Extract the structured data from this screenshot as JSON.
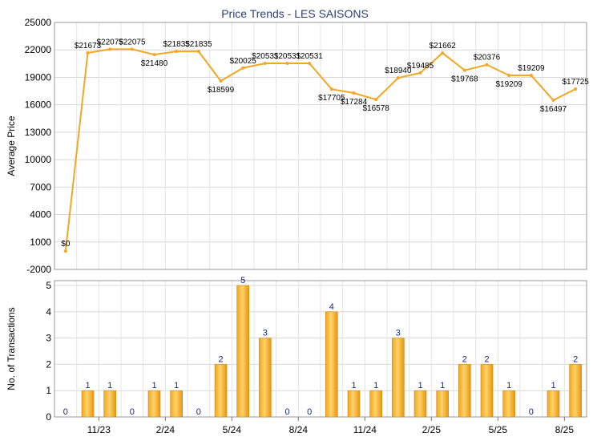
{
  "chart_data": [
    {
      "type": "line",
      "title": "Price Trends - LES SAISONS",
      "ylabel": "Average Price",
      "ylim": [
        -2000,
        25000
      ],
      "yticks": [
        "25000",
        "22000",
        "19000",
        "16000",
        "13000",
        "10000",
        "7000",
        "4000",
        "1000",
        "-2000"
      ],
      "color": "#f5a623",
      "grid": true,
      "points": [
        {
          "x": 0,
          "y": 0,
          "label": "$0"
        },
        {
          "x": 1,
          "y": 21673,
          "label": "$21673"
        },
        {
          "x": 2,
          "y": 22075,
          "label": "$22075"
        },
        {
          "x": 3,
          "y": 22075,
          "label": "$22075"
        },
        {
          "x": 4,
          "y": 21480,
          "label": "$21480"
        },
        {
          "x": 5,
          "y": 21835,
          "label": "$21835"
        },
        {
          "x": 6,
          "y": 21835,
          "label": "$21835"
        },
        {
          "x": 7,
          "y": 18599,
          "label": "$18599"
        },
        {
          "x": 8,
          "y": 20025,
          "label": "$20025"
        },
        {
          "x": 9,
          "y": 20531,
          "label": "$20531"
        },
        {
          "x": 10,
          "y": 20531,
          "label": "$20531"
        },
        {
          "x": 11,
          "y": 20531,
          "label": "$20531"
        },
        {
          "x": 12,
          "y": 17705,
          "label": "$17705"
        },
        {
          "x": 13,
          "y": 17284,
          "label": "$17284"
        },
        {
          "x": 14,
          "y": 16578,
          "label": "$16578"
        },
        {
          "x": 15,
          "y": 18940,
          "label": "$18940"
        },
        {
          "x": 16,
          "y": 19485,
          "label": "$19485"
        },
        {
          "x": 17,
          "y": 21662,
          "label": "$21662"
        },
        {
          "x": 18,
          "y": 19768,
          "label": "$19768"
        },
        {
          "x": 19,
          "y": 20376,
          "label": "$20376"
        },
        {
          "x": 20,
          "y": 19209,
          "label": "$19209"
        },
        {
          "x": 21,
          "y": 19209,
          "label": "$19209"
        },
        {
          "x": 22,
          "y": 16497,
          "label": "$16497"
        },
        {
          "x": 23,
          "y": 17725,
          "label": "$17725"
        }
      ]
    },
    {
      "type": "bar",
      "ylabel": "No. of Transactions",
      "ylim": [
        0,
        5
      ],
      "yticks": [
        "5",
        "4",
        "3",
        "2",
        "1",
        "0"
      ],
      "color": "#f5a623",
      "grid": true,
      "values": [
        0,
        1,
        1,
        0,
        1,
        1,
        0,
        2,
        5,
        3,
        0,
        0,
        4,
        1,
        1,
        3,
        1,
        1,
        2,
        2,
        1,
        0,
        1,
        2
      ],
      "xticks": [
        {
          "x": 1.5,
          "label": "11/23"
        },
        {
          "x": 4.5,
          "label": "2/24"
        },
        {
          "x": 7.5,
          "label": "5/24"
        },
        {
          "x": 10.5,
          "label": "8/24"
        },
        {
          "x": 13.5,
          "label": "11/24"
        },
        {
          "x": 16.5,
          "label": "2/25"
        },
        {
          "x": 19.5,
          "label": "5/25"
        },
        {
          "x": 22.5,
          "label": "8/25"
        }
      ]
    }
  ]
}
